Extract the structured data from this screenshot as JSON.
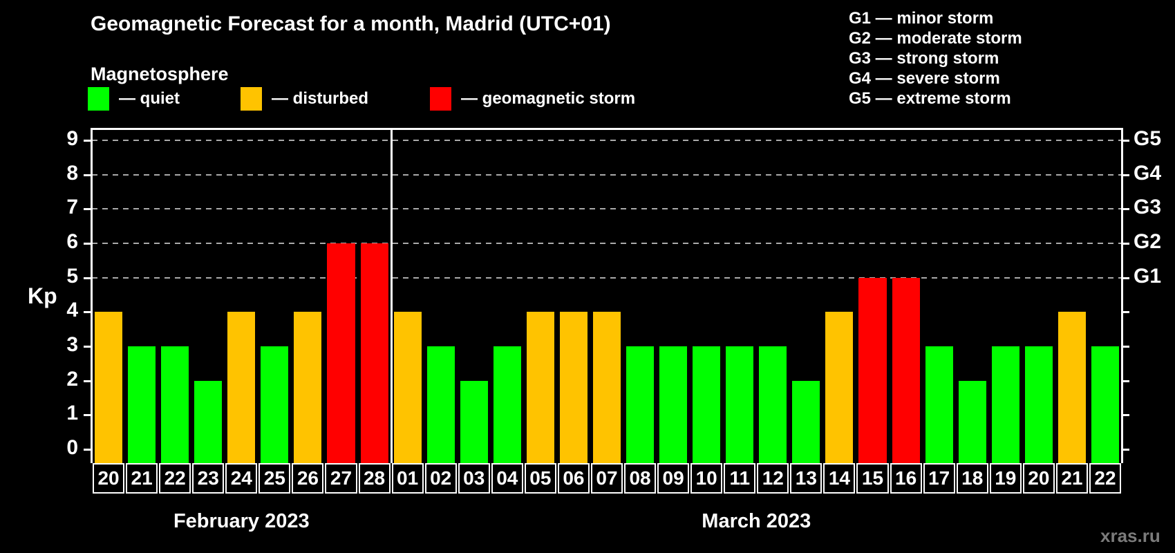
{
  "title": "Geomagnetic Forecast for a month, Madrid (UTC+01)",
  "subtitle": "Magnetosphere",
  "watermark": "xras.ru",
  "colors": {
    "quiet": "#00ff00",
    "disturbed": "#ffc300",
    "storm": "#ff0000",
    "grid": "#aaaaaa",
    "axis": "#ffffff",
    "text": "#ffffff",
    "watermark_text": "#7b7b7b",
    "background": "#000000"
  },
  "legend": [
    {
      "key": "quiet",
      "label": "— quiet"
    },
    {
      "key": "disturbed",
      "label": "— disturbed"
    },
    {
      "key": "storm",
      "label": "— geomagnetic storm"
    }
  ],
  "g_legend": [
    "G1 — minor storm",
    "G2 — moderate storm",
    "G3 — strong storm",
    "G4 — severe storm",
    "G5 — extreme storm"
  ],
  "chart_data": {
    "type": "bar",
    "title": "Geomagnetic Forecast for a month, Madrid (UTC+01)",
    "xlabel": "",
    "ylabel": "Kp",
    "ylim": [
      0,
      9
    ],
    "yticks": [
      0,
      1,
      2,
      3,
      4,
      5,
      6,
      7,
      8,
      9
    ],
    "gridlines_at": [
      5,
      6,
      7,
      8,
      9
    ],
    "grid": "horizontal dashed at storm levels only",
    "legend_position": "top-left",
    "right_axis_labels": [
      {
        "kp": 5,
        "label": "G1"
      },
      {
        "kp": 6,
        "label": "G2"
      },
      {
        "kp": 7,
        "label": "G3"
      },
      {
        "kp": 8,
        "label": "G4"
      },
      {
        "kp": 9,
        "label": "G5"
      }
    ],
    "months": [
      {
        "name": "February 2023",
        "bars": [
          {
            "day": "20",
            "kp": 4,
            "status": "disturbed"
          },
          {
            "day": "21",
            "kp": 3,
            "status": "quiet"
          },
          {
            "day": "22",
            "kp": 3,
            "status": "quiet"
          },
          {
            "day": "23",
            "kp": 2,
            "status": "quiet"
          },
          {
            "day": "24",
            "kp": 4,
            "status": "disturbed"
          },
          {
            "day": "25",
            "kp": 3,
            "status": "quiet"
          },
          {
            "day": "26",
            "kp": 4,
            "status": "disturbed"
          },
          {
            "day": "27",
            "kp": 6,
            "status": "storm"
          },
          {
            "day": "28",
            "kp": 6,
            "status": "storm"
          }
        ]
      },
      {
        "name": "March 2023",
        "bars": [
          {
            "day": "01",
            "kp": 4,
            "status": "disturbed"
          },
          {
            "day": "02",
            "kp": 3,
            "status": "quiet"
          },
          {
            "day": "03",
            "kp": 2,
            "status": "quiet"
          },
          {
            "day": "04",
            "kp": 3,
            "status": "quiet"
          },
          {
            "day": "05",
            "kp": 4,
            "status": "disturbed"
          },
          {
            "day": "06",
            "kp": 4,
            "status": "disturbed"
          },
          {
            "day": "07",
            "kp": 4,
            "status": "disturbed"
          },
          {
            "day": "08",
            "kp": 3,
            "status": "quiet"
          },
          {
            "day": "09",
            "kp": 3,
            "status": "quiet"
          },
          {
            "day": "10",
            "kp": 3,
            "status": "quiet"
          },
          {
            "day": "11",
            "kp": 3,
            "status": "quiet"
          },
          {
            "day": "12",
            "kp": 3,
            "status": "quiet"
          },
          {
            "day": "13",
            "kp": 2,
            "status": "quiet"
          },
          {
            "day": "14",
            "kp": 4,
            "status": "disturbed"
          },
          {
            "day": "15",
            "kp": 5,
            "status": "storm"
          },
          {
            "day": "16",
            "kp": 5,
            "status": "storm"
          },
          {
            "day": "17",
            "kp": 3,
            "status": "quiet"
          },
          {
            "day": "18",
            "kp": 2,
            "status": "quiet"
          },
          {
            "day": "19",
            "kp": 3,
            "status": "quiet"
          },
          {
            "day": "20",
            "kp": 3,
            "status": "quiet"
          },
          {
            "day": "21",
            "kp": 4,
            "status": "disturbed"
          },
          {
            "day": "22",
            "kp": 3,
            "status": "quiet"
          }
        ]
      }
    ]
  }
}
